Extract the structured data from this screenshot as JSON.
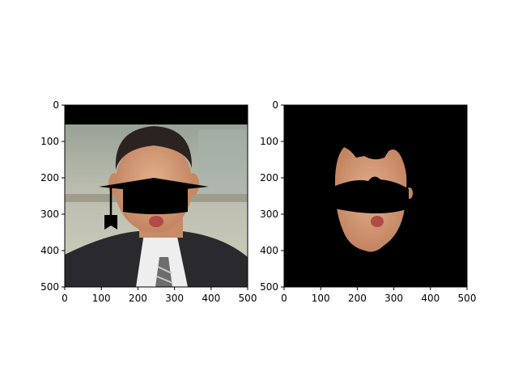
{
  "chart_data": [
    {
      "type": "image",
      "panel": "left",
      "content": "photo of a man in a suit with a black graduation cap and black band over the eyes; black band across the top of the image",
      "xlim": [
        0,
        500
      ],
      "ylim": [
        500,
        0
      ],
      "xticks": [
        0,
        100,
        200,
        300,
        400,
        500
      ],
      "yticks": [
        0,
        100,
        200,
        300,
        400,
        500
      ],
      "xtick_labels": [
        "0",
        "100",
        "200",
        "300",
        "400",
        "500"
      ],
      "ytick_labels": [
        "0",
        "100",
        "200",
        "300",
        "400",
        "500"
      ]
    },
    {
      "type": "image",
      "panel": "right",
      "content": "segmented face mask on black background with black band over the eyes",
      "xlim": [
        0,
        500
      ],
      "ylim": [
        500,
        0
      ],
      "xticks": [
        0,
        100,
        200,
        300,
        400,
        500
      ],
      "yticks": [
        0,
        100,
        200,
        300,
        400,
        500
      ],
      "xtick_labels": [
        "0",
        "100",
        "200",
        "300",
        "400",
        "500"
      ],
      "ytick_labels": [
        "0",
        "100",
        "200",
        "300",
        "400",
        "500"
      ]
    }
  ],
  "colors": {
    "skin": "#d8a47e",
    "suit": "#2a2a2e",
    "background_top": "#9aa39a",
    "wall": "#c8c6b4",
    "mask_black": "#000000"
  }
}
